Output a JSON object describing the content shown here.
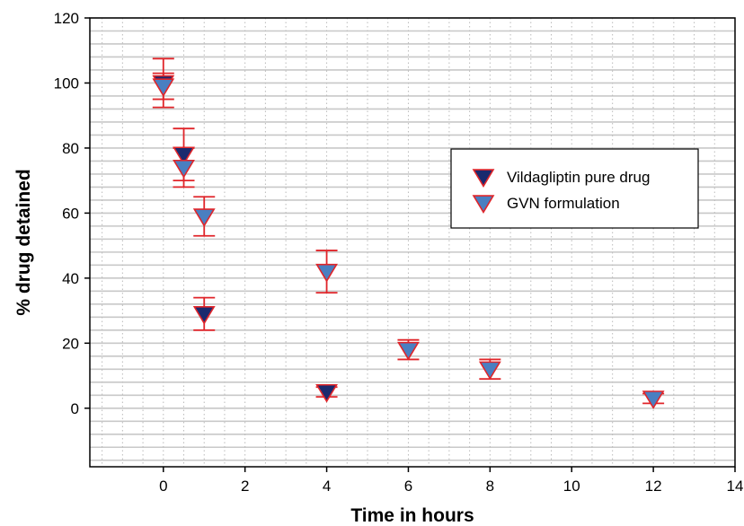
{
  "chart_data": {
    "type": "scatter",
    "title": "",
    "xlabel": "Time in hours",
    "ylabel": "% drug detained",
    "xlim": [
      -1.8,
      14
    ],
    "ylim": [
      -18,
      120
    ],
    "xticks": [
      "0",
      "2",
      "4",
      "6",
      "8",
      "10",
      "12",
      "14"
    ],
    "yticks": [
      "0",
      "20",
      "40",
      "60",
      "80",
      "100",
      "120"
    ],
    "grid": true,
    "legend_position": "right",
    "series": [
      {
        "name": "Vildagliptin pure drug",
        "marker": "triangle-down",
        "color": "#1a2a6e",
        "points": [
          {
            "x": 0,
            "y": 100,
            "err": 7.5
          },
          {
            "x": 0.5,
            "y": 78,
            "err": 8
          },
          {
            "x": 1,
            "y": 29,
            "err": 5
          },
          {
            "x": 4,
            "y": 5,
            "err": 1.5
          }
        ]
      },
      {
        "name": "GVN formulation",
        "marker": "triangle-down",
        "color": "#4a7fc1",
        "points": [
          {
            "x": 0,
            "y": 99,
            "err": 4
          },
          {
            "x": 0.5,
            "y": 74,
            "err": 6
          },
          {
            "x": 1,
            "y": 59,
            "err": 6
          },
          {
            "x": 4,
            "y": 42,
            "err": 6.5
          },
          {
            "x": 6,
            "y": 18,
            "err": 3
          },
          {
            "x": 8,
            "y": 12,
            "err": 3
          },
          {
            "x": 12,
            "y": 3,
            "err": 1.5
          }
        ]
      }
    ],
    "errorbar_color": "#e0252a",
    "marker_edge_color": "#e0252a"
  }
}
